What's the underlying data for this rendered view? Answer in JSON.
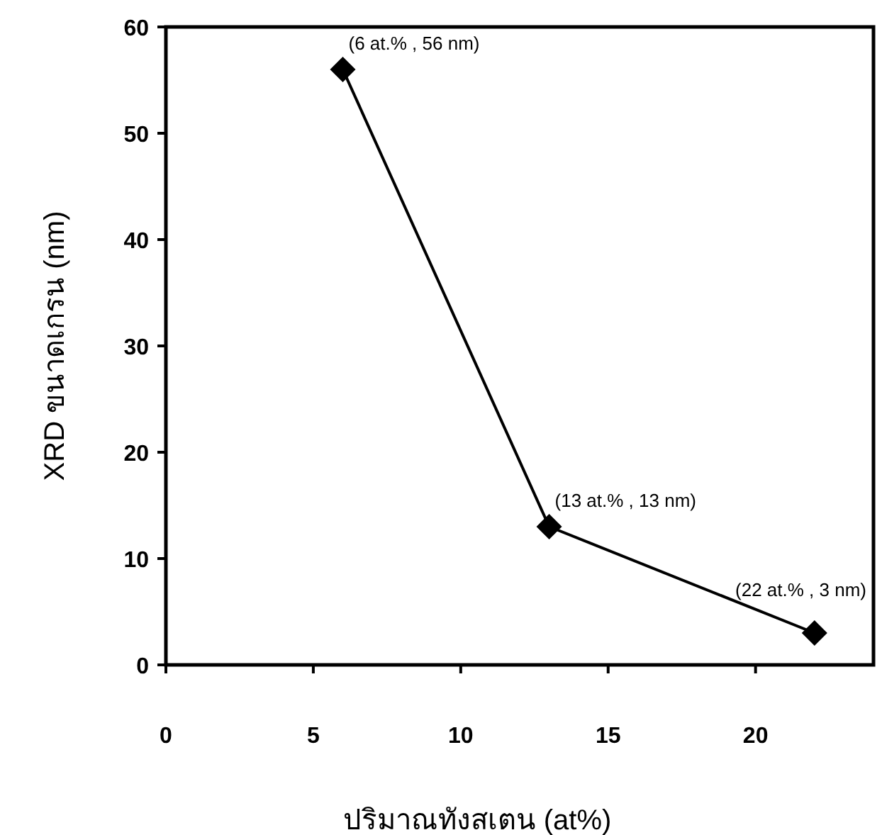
{
  "chart_data": {
    "type": "line",
    "xlabel": "ปริมาณทังสเตน (at%)",
    "ylabel": "XRD ขนาดเกรน  (nm)",
    "x": [
      6,
      13,
      22
    ],
    "series": [
      {
        "color": "#000000",
        "values": [
          56,
          13,
          3
        ]
      }
    ],
    "marker": "diamond",
    "xlim": [
      0,
      24
    ],
    "xticks": [
      0,
      5,
      10,
      15,
      20
    ],
    "ylim": [
      0,
      60
    ],
    "yticks": [
      0,
      10,
      20,
      30,
      40,
      50,
      60
    ],
    "annotations": [
      {
        "text": "(6 at.% , 56 nm)",
        "x": 6,
        "y": 56
      },
      {
        "text": "(13 at.% , 13 nm)",
        "x": 13,
        "y": 13
      },
      {
        "text": "(22 at.% , 3 nm)",
        "x": 22,
        "y": 3
      }
    ]
  }
}
